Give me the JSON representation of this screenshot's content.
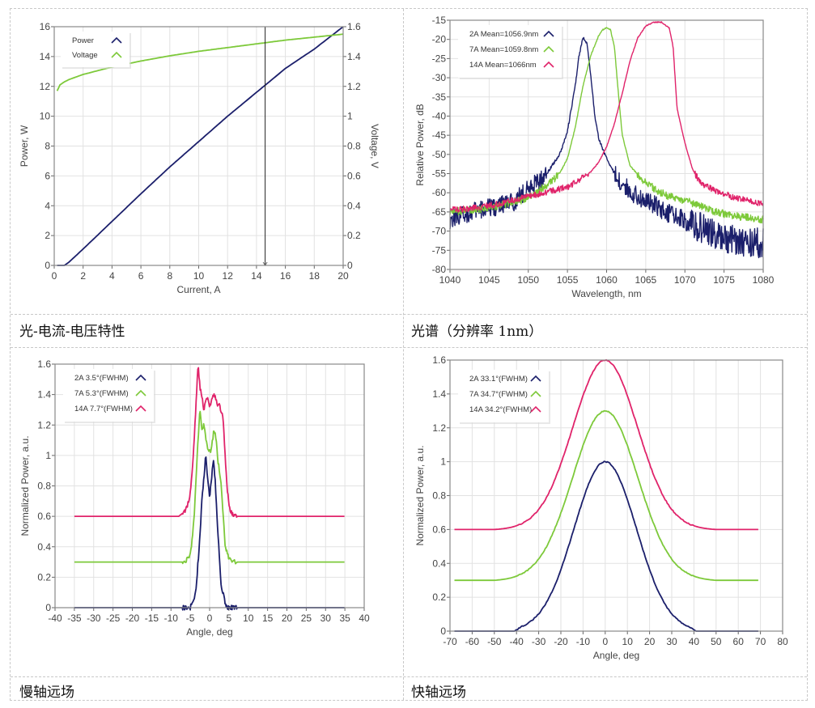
{
  "captions": {
    "liv": "光-电流-电压特性",
    "spectrum": "光谱（分辨率 1nm）",
    "slow_axis": "慢轴远场",
    "fast_axis": "快轴远场"
  },
  "colors": {
    "navy": "#1b1f6b",
    "green": "#7dc93a",
    "pink": "#e0236a",
    "grid": "#e2e2e2",
    "frame": "#888888"
  },
  "chart_data": [
    {
      "id": "liv",
      "type": "line",
      "title": "",
      "xlabel": "Current, A",
      "ylabel": "Power, W",
      "y2label": "Voltage, V",
      "xlim": [
        0,
        20
      ],
      "ylim": [
        0,
        16
      ],
      "y2lim": [
        0,
        1.6
      ],
      "xticks": [
        "0",
        "2",
        "4",
        "6",
        "8",
        "10",
        "12",
        "14",
        "16",
        "18",
        "20"
      ],
      "yticks": [
        "0",
        "2",
        "4",
        "6",
        "8",
        "10",
        "12",
        "14",
        "16"
      ],
      "y2ticks": [
        "0",
        "0.2",
        "0.4",
        "0.6",
        "0.8",
        "1",
        "1.2",
        "1.4",
        "1.6"
      ],
      "grid": true,
      "legend": "top-left",
      "cursor_x": 14.6,
      "series": [
        {
          "name": "Power",
          "axis": "left",
          "color": "#1b1f6b",
          "x": [
            0.2,
            0.5,
            0.7,
            1.0,
            2,
            4,
            6,
            8,
            10,
            12,
            14,
            16,
            18,
            20
          ],
          "y": [
            0,
            0,
            0,
            0.2,
            1.1,
            2.95,
            4.8,
            6.6,
            8.3,
            10.0,
            11.6,
            13.2,
            14.5,
            16.0
          ]
        },
        {
          "name": "Voltage",
          "axis": "right",
          "color": "#7dc93a",
          "x": [
            0.2,
            0.4,
            0.7,
            1,
            2,
            3,
            4,
            5,
            6,
            8,
            10,
            12,
            14,
            16,
            18,
            20
          ],
          "y": [
            1.17,
            1.21,
            1.23,
            1.245,
            1.28,
            1.305,
            1.33,
            1.35,
            1.37,
            1.405,
            1.435,
            1.46,
            1.485,
            1.51,
            1.53,
            1.55
          ]
        }
      ]
    },
    {
      "id": "spectrum",
      "type": "line",
      "title": "",
      "xlabel": "Wavelength, nm",
      "ylabel": "Relative Power, dB",
      "xlim": [
        1040,
        1080
      ],
      "ylim": [
        -80,
        -15
      ],
      "xticks": [
        "1040",
        "1045",
        "1050",
        "1055",
        "1060",
        "1065",
        "1070",
        "1075",
        "1080"
      ],
      "yticks": [
        "-15",
        "-20",
        "-25",
        "-30",
        "-35",
        "-40",
        "-45",
        "-50",
        "-55",
        "-60",
        "-65",
        "-70",
        "-75",
        "-80"
      ],
      "grid": true,
      "legend": "top-left",
      "series": [
        {
          "name": "2A Mean=1056.9nm",
          "color": "#1b1f6b",
          "noise": 2.5,
          "x": [
            1040,
            1042,
            1045,
            1048,
            1050,
            1052,
            1054,
            1055,
            1056,
            1056.5,
            1057,
            1057.5,
            1058,
            1058.5,
            1059,
            1060,
            1061,
            1062,
            1064,
            1066,
            1068,
            1070,
            1072,
            1074,
            1076,
            1078,
            1080
          ],
          "y": [
            -67,
            -65.5,
            -64,
            -62.5,
            -59,
            -56,
            -50,
            -44,
            -32,
            -24,
            -19.5,
            -21,
            -30,
            -40,
            -46,
            -51,
            -55,
            -58,
            -61,
            -63,
            -65.5,
            -67,
            -69,
            -71,
            -72,
            -73,
            -73
          ]
        },
        {
          "name": "7A Mean=1059.8nm",
          "color": "#7dc93a",
          "noise": 1.0,
          "x": [
            1040,
            1043,
            1046,
            1049,
            1051,
            1053,
            1054,
            1055,
            1056,
            1057,
            1058,
            1059,
            1059.5,
            1060,
            1060.5,
            1061,
            1061.5,
            1062,
            1063,
            1065,
            1067,
            1068,
            1070,
            1072,
            1074,
            1076,
            1078,
            1080
          ],
          "y": [
            -65,
            -64.5,
            -63.5,
            -62,
            -60,
            -57,
            -55,
            -51,
            -43,
            -32,
            -24,
            -19,
            -17.5,
            -17,
            -17.5,
            -22,
            -34,
            -45,
            -53,
            -57.5,
            -60,
            -61,
            -62,
            -63.5,
            -65,
            -66,
            -66.5,
            -67
          ]
        },
        {
          "name": "14A Mean=1066nm",
          "color": "#e0236a",
          "noise": 0.8,
          "x": [
            1040,
            1043,
            1046,
            1049,
            1052,
            1055,
            1057,
            1058,
            1059,
            1060,
            1061,
            1062,
            1063,
            1064,
            1065,
            1066,
            1067,
            1068,
            1068.5,
            1069,
            1070,
            1071,
            1072,
            1074,
            1076,
            1078,
            1080
          ],
          "y": [
            -64.5,
            -64,
            -63,
            -61.5,
            -60,
            -58.5,
            -56,
            -54.5,
            -52,
            -48,
            -42,
            -34,
            -25.5,
            -19.5,
            -16.5,
            -15.5,
            -15.5,
            -17,
            -22,
            -38,
            -47,
            -54,
            -57.5,
            -59.5,
            -61,
            -62,
            -63
          ]
        }
      ]
    },
    {
      "id": "slow_axis",
      "type": "line",
      "title": "",
      "xlabel": "Angle, deg",
      "ylabel": "Normalized Power, a.u.",
      "xlim": [
        -40,
        40
      ],
      "ylim": [
        0,
        1.6
      ],
      "xticks": [
        "-40",
        "-35",
        "-30",
        "-25",
        "-20",
        "-15",
        "-10",
        "-5",
        "0",
        "5",
        "10",
        "15",
        "20",
        "25",
        "30",
        "35",
        "40"
      ],
      "yticks": [
        "0",
        "0.2",
        "0.4",
        "0.6",
        "0.8",
        "1",
        "1.2",
        "1.4",
        "1.6"
      ],
      "grid": true,
      "legend": "top-left",
      "series": [
        {
          "name": "2A 3.5°(FWHM)",
          "color": "#1b1f6b",
          "x": [
            -35,
            -5,
            -4.5,
            -4,
            -3.5,
            -3,
            -2.5,
            -2,
            -1.5,
            -1,
            -0.5,
            0,
            0.5,
            1,
            1.5,
            2,
            2.5,
            3,
            3.5,
            4,
            4.5,
            5,
            35
          ],
          "y": [
            0,
            0,
            0.03,
            0.05,
            0.12,
            0.3,
            0.47,
            0.7,
            0.85,
            1.0,
            0.85,
            0.72,
            0.85,
            0.97,
            0.82,
            0.55,
            0.35,
            0.13,
            0.1,
            0.03,
            0,
            0,
            0
          ]
        },
        {
          "name": "7A 5.3°(FWHM)",
          "color": "#7dc93a",
          "x": [
            -35,
            -7,
            -6,
            -5,
            -4.5,
            -4,
            -3.5,
            -3,
            -2.5,
            -2,
            -1.5,
            -1,
            -0.5,
            0,
            0.5,
            1,
            1.5,
            2,
            2.5,
            3,
            3.5,
            4,
            4.5,
            5,
            6,
            7,
            35
          ],
          "y": [
            0.3,
            0.3,
            0.31,
            0.35,
            0.45,
            0.6,
            0.85,
            1.1,
            1.3,
            1.18,
            1.2,
            1.12,
            1.05,
            1.02,
            1.05,
            1.15,
            1.16,
            1.0,
            0.9,
            0.8,
            0.6,
            0.42,
            0.36,
            0.32,
            0.3,
            0.3,
            0.3
          ]
        },
        {
          "name": "14A 7.7°(FWHM)",
          "color": "#e0236a",
          "x": [
            -35,
            -8,
            -7,
            -6,
            -5,
            -4.5,
            -4,
            -3.5,
            -3,
            -2.5,
            -2,
            -1.5,
            -1,
            -0.5,
            0,
            0.5,
            1,
            1.5,
            2,
            2.5,
            3,
            3.5,
            4,
            4.5,
            5,
            5.5,
            6,
            7,
            35
          ],
          "y": [
            0.6,
            0.6,
            0.62,
            0.65,
            0.75,
            0.9,
            1.1,
            1.35,
            1.6,
            1.45,
            1.38,
            1.3,
            1.35,
            1.38,
            1.32,
            1.36,
            1.4,
            1.38,
            1.33,
            1.35,
            1.28,
            1.25,
            1.0,
            0.8,
            0.67,
            0.63,
            0.61,
            0.6,
            0.6
          ]
        }
      ]
    },
    {
      "id": "fast_axis",
      "type": "line",
      "title": "",
      "xlabel": "Angle, deg",
      "ylabel": "Normalized Power, a.u.",
      "xlim": [
        -70,
        80
      ],
      "ylim": [
        0,
        1.6
      ],
      "xticks": [
        "-70",
        "-60",
        "-50",
        "-40",
        "-30",
        "-20",
        "-10",
        "0",
        "10",
        "20",
        "30",
        "40",
        "50",
        "60",
        "70",
        "80"
      ],
      "yticks": [
        "0",
        "0.2",
        "0.4",
        "0.6",
        "0.8",
        "1",
        "1.2",
        "1.4",
        "1.6"
      ],
      "grid": true,
      "legend": "top-left",
      "series": [
        {
          "name": "2A 33.1°(FWHM)",
          "color": "#1b1f6b",
          "offset": 0.0,
          "peak": 1.0,
          "fwhm": 33.1,
          "x_start": -68,
          "x_end": 69,
          "cutoff": 41
        },
        {
          "name": "7A 34.7°(FWHM)",
          "color": "#7dc93a",
          "offset": 0.3,
          "peak": 1.0,
          "fwhm": 34.7,
          "x_start": -68,
          "x_end": 69,
          "cutoff": 50
        },
        {
          "name": "14A 34.2°(FWHM)",
          "color": "#e0236a",
          "offset": 0.6,
          "peak": 1.0,
          "fwhm": 34.2,
          "x_start": -68,
          "x_end": 69,
          "cutoff": 50
        }
      ]
    }
  ]
}
